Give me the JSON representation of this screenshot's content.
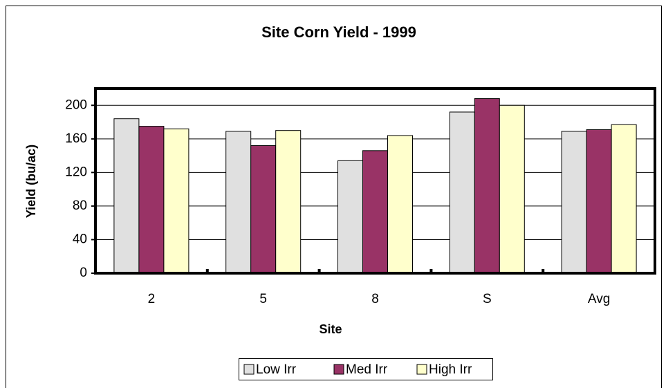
{
  "chart_data": {
    "type": "bar",
    "title": "Site Corn Yield - 1999",
    "x_label": "Site",
    "y_label": "Yield (bu/ac)",
    "categories": [
      "2",
      "5",
      "8",
      "S",
      "Avg"
    ],
    "series": [
      {
        "name": "Low Irr",
        "color": "#e0e0e0",
        "values": [
          184,
          169,
          134,
          192,
          169
        ]
      },
      {
        "name": "Med Irr",
        "color": "#993366",
        "values": [
          175,
          152,
          146,
          208,
          171
        ]
      },
      {
        "name": "High Irr",
        "color": "#ffffcc",
        "values": [
          172,
          170,
          164,
          200,
          177
        ]
      }
    ],
    "ylim": [
      0,
      220
    ],
    "yticks": [
      0,
      40,
      80,
      120,
      160,
      200
    ],
    "grid": true,
    "legend": "bottom"
  }
}
